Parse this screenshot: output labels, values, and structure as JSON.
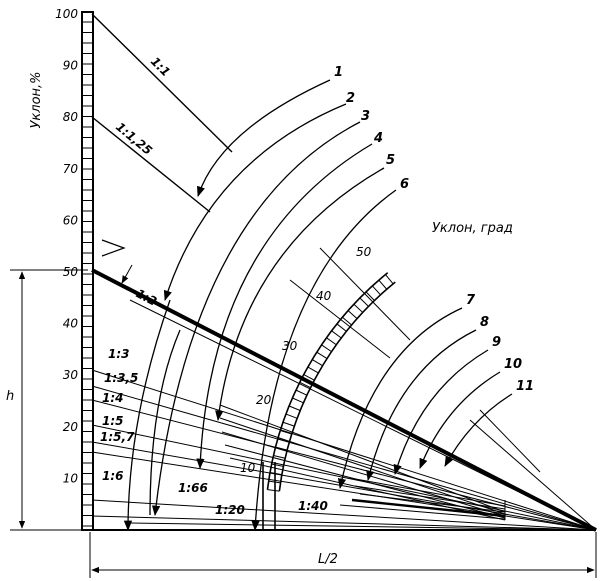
{
  "axis": {
    "y_label": "Уклон,%",
    "ticks": [
      "100",
      "90",
      "80",
      "70",
      "60",
      "50",
      "40",
      "30",
      "20",
      "10"
    ],
    "h_label": "h",
    "l_label": "L/2"
  },
  "degree_scale": {
    "label": "Уклон, град",
    "ticks": [
      "50",
      "40",
      "30",
      "20",
      "10"
    ]
  },
  "slopes": {
    "s1_1": "1:1",
    "s1_1_25": "1:1,25",
    "s1_2": "1:2",
    "s1_3": "1:3",
    "s1_3_5": "1:3,5",
    "s1_4": "1:4",
    "s1_5": "1:5",
    "s1_5_7": "1:5,7",
    "s1_6": "1:6",
    "s1_66": "1:66",
    "s1_20": "1:20",
    "s1_40": "1:40"
  },
  "curve_numbers": [
    "1",
    "2",
    "3",
    "4",
    "5",
    "6",
    "7",
    "8",
    "9",
    "10",
    "11"
  ]
}
